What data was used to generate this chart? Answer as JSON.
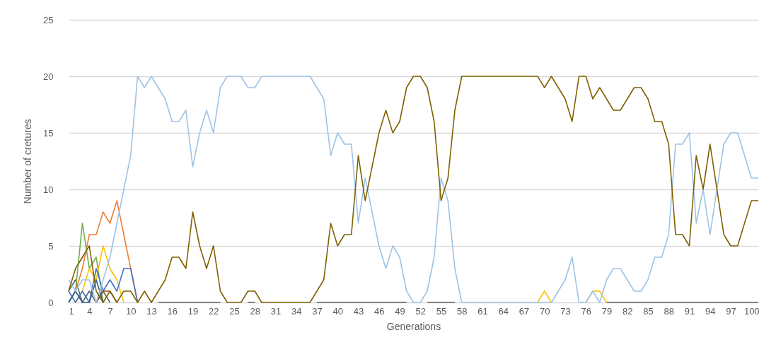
{
  "chart_data": {
    "type": "line",
    "xlabel": "Generations",
    "ylabel": "Number of cretures",
    "x": [
      1,
      2,
      3,
      4,
      5,
      6,
      7,
      8,
      9,
      10,
      11,
      12,
      13,
      14,
      15,
      16,
      17,
      18,
      19,
      20,
      21,
      22,
      23,
      24,
      25,
      26,
      27,
      28,
      29,
      30,
      31,
      32,
      33,
      34,
      35,
      36,
      37,
      38,
      39,
      40,
      41,
      42,
      43,
      44,
      45,
      46,
      47,
      48,
      49,
      50,
      51,
      52,
      53,
      54,
      55,
      56,
      57,
      58,
      59,
      60,
      61,
      62,
      63,
      64,
      65,
      66,
      67,
      68,
      69,
      70,
      71,
      72,
      73,
      74,
      75,
      76,
      77,
      78,
      79,
      80,
      81,
      82,
      83,
      84,
      85,
      86,
      87,
      88,
      89,
      90,
      91,
      92,
      93,
      94,
      95,
      96,
      97,
      98,
      99,
      100,
      101
    ],
    "xlim": [
      1,
      101
    ],
    "xticks": [
      1,
      4,
      7,
      10,
      13,
      16,
      19,
      22,
      25,
      28,
      31,
      34,
      37,
      40,
      43,
      46,
      49,
      52,
      55,
      58,
      61,
      64,
      67,
      70,
      73,
      76,
      79,
      82,
      85,
      88,
      91,
      94,
      97,
      100
    ],
    "ylim": [
      0,
      25
    ],
    "yticks": [
      0,
      5,
      10,
      15,
      20,
      25
    ],
    "grid": "y",
    "series": [
      {
        "color": "#636363",
        "values": [
          1,
          2,
          0,
          1,
          0,
          1,
          0,
          null,
          null,
          null,
          null,
          null,
          null,
          0,
          0,
          0,
          0,
          0,
          0,
          0,
          0,
          0,
          0,
          null,
          null,
          null,
          0,
          0,
          null,
          null,
          null,
          null,
          null,
          null,
          null,
          null,
          0,
          0,
          0,
          0,
          0,
          0,
          0,
          0,
          0,
          0,
          0,
          0,
          0,
          0,
          null,
          null,
          0,
          0,
          0,
          0,
          0,
          null,
          null,
          null,
          null,
          null,
          null,
          null,
          null,
          null,
          null,
          null,
          null,
          null,
          null,
          null,
          null,
          null,
          null,
          null,
          null,
          null,
          0,
          0,
          0,
          0,
          0,
          0,
          0,
          0,
          0,
          0,
          0,
          0,
          0,
          0,
          0,
          0,
          0,
          0,
          0,
          0,
          0,
          0,
          0
        ]
      },
      {
        "color": "#ed7d31",
        "values": [
          0,
          1,
          3,
          6,
          6,
          8,
          7,
          9,
          6,
          3,
          0,
          null,
          null,
          null,
          null,
          null,
          null,
          null,
          null,
          null,
          null,
          null,
          null,
          null,
          null,
          null,
          null,
          null,
          null,
          null,
          null,
          null,
          null,
          null,
          null,
          null,
          null,
          null,
          null,
          null,
          null,
          null,
          null,
          null,
          null,
          null,
          null,
          null,
          null,
          null,
          null,
          null,
          null,
          null,
          null,
          null,
          null,
          null,
          null,
          null,
          null,
          null,
          null,
          null,
          null,
          null,
          null,
          null,
          null,
          null,
          null,
          null,
          null,
          null,
          null,
          null,
          null,
          null,
          null,
          null,
          null,
          null,
          null,
          null,
          null,
          null,
          null,
          null,
          null,
          null,
          null,
          null,
          null,
          null,
          null,
          null,
          null,
          null,
          null,
          null,
          null
        ]
      },
      {
        "color": "#70ad47",
        "values": [
          0,
          1,
          7,
          3,
          4,
          0,
          null,
          null,
          null,
          null,
          null,
          null,
          null,
          null,
          null,
          null,
          null,
          null,
          null,
          null,
          null,
          null,
          null,
          null,
          null,
          null,
          null,
          null,
          null,
          null,
          null,
          null,
          null,
          null,
          null,
          null,
          null,
          null,
          null,
          null,
          null,
          null,
          null,
          null,
          null,
          null,
          null,
          null,
          null,
          null,
          null,
          null,
          null,
          null,
          null,
          null,
          null,
          null,
          null,
          null,
          null,
          null,
          null,
          null,
          null,
          null,
          null,
          null,
          null,
          null,
          null,
          null,
          null,
          null,
          null,
          null,
          null,
          null,
          null,
          null,
          null,
          null,
          null,
          null,
          null,
          null,
          null,
          null,
          null,
          null,
          null,
          null,
          null,
          null,
          null,
          null,
          null,
          null,
          null,
          null,
          null
        ]
      },
      {
        "color": "#ffc000",
        "values": [
          null,
          0,
          1,
          3,
          2,
          5,
          3,
          2,
          0,
          null,
          null,
          null,
          null,
          null,
          null,
          null,
          null,
          null,
          null,
          null,
          null,
          null,
          null,
          null,
          null,
          null,
          null,
          null,
          null,
          null,
          null,
          null,
          null,
          null,
          null,
          null,
          null,
          null,
          null,
          null,
          null,
          null,
          null,
          null,
          null,
          null,
          null,
          null,
          null,
          null,
          null,
          null,
          null,
          null,
          null,
          null,
          null,
          null,
          null,
          null,
          null,
          null,
          null,
          null,
          null,
          null,
          null,
          null,
          0,
          1,
          0,
          null,
          null,
          null,
          null,
          0,
          1,
          1,
          0,
          null,
          null,
          null,
          null,
          null,
          null,
          null,
          null,
          null,
          null,
          null,
          null,
          null,
          null,
          null,
          null,
          null,
          null,
          null,
          null,
          null,
          null
        ]
      },
      {
        "color": "#4472c4",
        "values": [
          1,
          0,
          1,
          0,
          3,
          1,
          2,
          1,
          3,
          3,
          0,
          null,
          null,
          null,
          null,
          null,
          null,
          null,
          null,
          null,
          null,
          null,
          null,
          null,
          null,
          null,
          null,
          null,
          null,
          null,
          null,
          null,
          null,
          null,
          null,
          null,
          null,
          null,
          null,
          null,
          null,
          null,
          null,
          null,
          null,
          null,
          null,
          null,
          null,
          null,
          null,
          null,
          null,
          null,
          null,
          null,
          null,
          null,
          null,
          null,
          null,
          null,
          null,
          null,
          null,
          null,
          null,
          null,
          null,
          null,
          null,
          null,
          null,
          null,
          null,
          null,
          null,
          null,
          null,
          null,
          null,
          null,
          null,
          null,
          null,
          null,
          null,
          null,
          null,
          null,
          null,
          null,
          null,
          null,
          null,
          null,
          null,
          null,
          null,
          null,
          null
        ]
      },
      {
        "color": "#9e480e",
        "values": [
          null,
          null,
          null,
          null,
          0,
          1,
          1,
          0,
          null,
          null,
          null,
          null,
          null,
          null,
          null,
          null,
          null,
          null,
          null,
          null,
          null,
          null,
          null,
          null,
          null,
          null,
          null,
          null,
          null,
          null,
          null,
          null,
          null,
          null,
          null,
          null,
          null,
          null,
          null,
          null,
          null,
          null,
          null,
          null,
          null,
          null,
          null,
          null,
          null,
          null,
          null,
          null,
          null,
          null,
          null,
          null,
          null,
          null,
          null,
          null,
          null,
          null,
          null,
          null,
          null,
          null,
          null,
          null,
          null,
          null,
          null,
          null,
          null,
          null,
          null,
          null,
          null,
          null,
          null,
          null,
          null,
          null,
          null,
          null,
          null,
          null,
          null,
          null,
          null,
          null,
          null,
          null,
          null,
          null,
          null,
          null,
          null,
          null,
          null,
          null,
          null
        ]
      },
      {
        "color": "#255e91",
        "values": [
          0,
          1,
          0,
          0,
          2,
          0,
          null,
          null,
          null,
          null,
          null,
          null,
          null,
          null,
          null,
          null,
          null,
          null,
          null,
          null,
          null,
          null,
          null,
          null,
          null,
          null,
          null,
          null,
          null,
          null,
          null,
          null,
          null,
          null,
          null,
          null,
          null,
          null,
          null,
          null,
          null,
          null,
          null,
          null,
          null,
          null,
          null,
          null,
          null,
          null,
          null,
          null,
          null,
          null,
          null,
          null,
          null,
          null,
          null,
          null,
          null,
          null,
          null,
          null,
          null,
          null,
          null,
          null,
          null,
          null,
          null,
          null,
          null,
          null,
          null,
          null,
          null,
          null,
          null,
          null,
          null,
          null,
          null,
          null,
          null,
          null,
          null,
          null,
          null,
          null,
          null,
          null,
          null,
          null,
          null,
          null,
          null,
          null,
          null,
          null,
          null
        ]
      },
      {
        "color": "#9dc3e6",
        "values": [
          2,
          1,
          2,
          2,
          0,
          2,
          4,
          7,
          10,
          13,
          20,
          19,
          20,
          19,
          18,
          16,
          16,
          17,
          12,
          15,
          17,
          15,
          19,
          20,
          20,
          20,
          19,
          19,
          20,
          20,
          20,
          20,
          20,
          20,
          20,
          20,
          19,
          18,
          13,
          15,
          14,
          14,
          7,
          11,
          8,
          5,
          3,
          5,
          4,
          1,
          0,
          0,
          1,
          4,
          11,
          9,
          3,
          0,
          0,
          0,
          0,
          0,
          0,
          0,
          0,
          0,
          0,
          0,
          0,
          0,
          0,
          1,
          2,
          4,
          0,
          0,
          1,
          0,
          2,
          3,
          3,
          2,
          1,
          1,
          2,
          4,
          4,
          6,
          14,
          14,
          15,
          7,
          10,
          6,
          10,
          14,
          15,
          15,
          13,
          11,
          11
        ]
      },
      {
        "color": "#7f6000",
        "values": [
          1,
          3,
          4,
          5,
          1,
          0,
          1,
          0,
          1,
          1,
          0,
          1,
          0,
          1,
          2,
          4,
          4,
          3,
          8,
          5,
          3,
          5,
          1,
          0,
          0,
          0,
          1,
          1,
          0,
          0,
          0,
          0,
          0,
          0,
          0,
          0,
          1,
          2,
          7,
          5,
          6,
          6,
          13,
          9,
          12,
          15,
          17,
          15,
          16,
          19,
          20,
          20,
          19,
          16,
          9,
          11,
          17,
          20,
          20,
          20,
          20,
          20,
          20,
          20,
          20,
          20,
          20,
          20,
          20,
          19,
          20,
          19,
          18,
          16,
          20,
          20,
          18,
          19,
          18,
          17,
          17,
          18,
          19,
          19,
          18,
          16,
          16,
          14,
          6,
          6,
          5,
          13,
          10,
          14,
          10,
          6,
          5,
          5,
          7,
          9,
          9
        ]
      }
    ]
  }
}
